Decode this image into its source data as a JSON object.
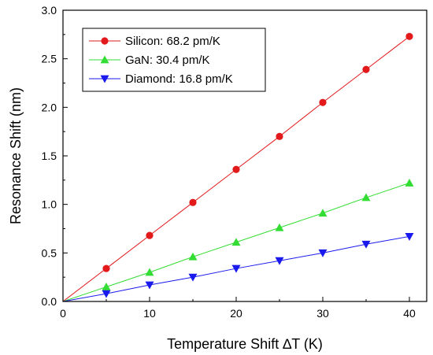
{
  "chart_data": {
    "type": "line",
    "xlabel": "Temperature Shift ∆T (K)",
    "ylabel": "Resonance Shift (nm)",
    "xlim": [
      0,
      42
    ],
    "ylim": [
      0.0,
      3.0
    ],
    "x_ticks": [
      0,
      10,
      20,
      30,
      40
    ],
    "y_ticks": [
      0.0,
      0.5,
      1.0,
      1.5,
      2.0,
      2.5,
      3.0
    ],
    "x_tick_labels": [
      "0",
      "10",
      "20",
      "30",
      "40"
    ],
    "y_tick_labels": [
      "0.0",
      "0.5",
      "1.0",
      "1.5",
      "2.0",
      "2.5",
      "3.0"
    ],
    "grid": false,
    "legend_position": "top-left",
    "x": [
      0,
      5,
      10,
      15,
      20,
      25,
      30,
      35,
      40
    ],
    "series": [
      {
        "name": "Silicon: 68.2 pm/K",
        "color": "#e31a1c",
        "marker": "circle",
        "values": [
          0.0,
          0.34,
          0.68,
          1.02,
          1.36,
          1.7,
          2.05,
          2.39,
          2.73
        ]
      },
      {
        "name": "GaN: 30.4 pm/K",
        "color": "#33dd33",
        "marker": "triangle-up",
        "values": [
          0.0,
          0.15,
          0.3,
          0.46,
          0.61,
          0.76,
          0.91,
          1.07,
          1.22
        ]
      },
      {
        "name": "Diamond: 16.8 pm/K",
        "color": "#1a1aee",
        "marker": "triangle-down",
        "values": [
          0.0,
          0.08,
          0.17,
          0.25,
          0.34,
          0.42,
          0.5,
          0.59,
          0.67
        ]
      }
    ]
  }
}
